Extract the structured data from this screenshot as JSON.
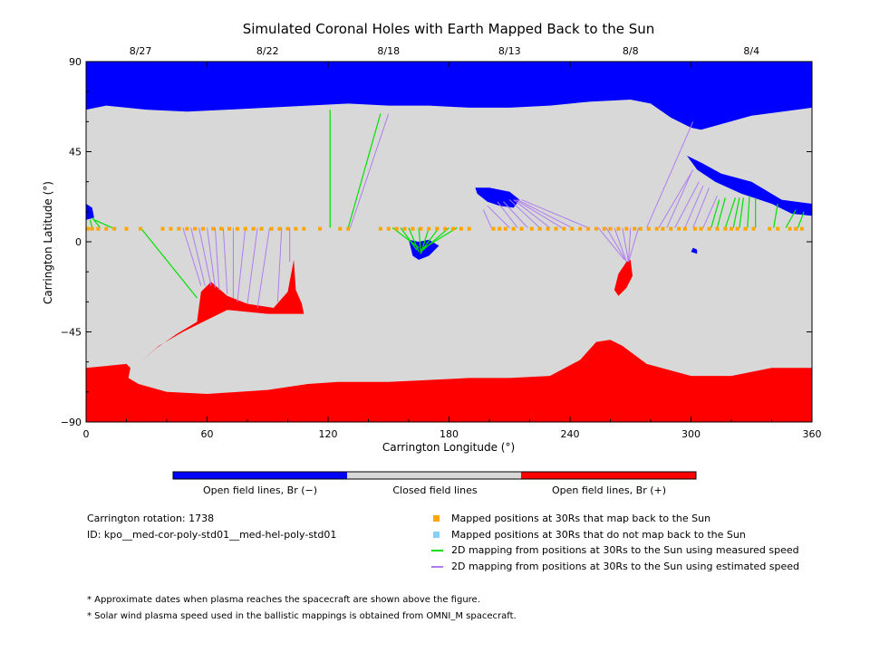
{
  "chart_data": {
    "type": "map",
    "title": "Simulated Coronal Holes with Earth Mapped Back to the Sun",
    "xlabel": "Carrington Longitude (°)",
    "ylabel": "Carrington Latitude (°)",
    "xlim": [
      0,
      360
    ],
    "ylim": [
      -90,
      90
    ],
    "xticks": [
      0,
      60,
      120,
      180,
      240,
      300,
      360
    ],
    "yticks": [
      -90,
      -45,
      0,
      45,
      90
    ],
    "top_axis_dates": [
      {
        "lon": 27,
        "label": "8/27"
      },
      {
        "lon": 90,
        "label": "8/22"
      },
      {
        "lon": 150,
        "label": "8/18"
      },
      {
        "lon": 210,
        "label": "8/13"
      },
      {
        "lon": 270,
        "label": "8/8"
      },
      {
        "lon": 330,
        "label": "8/4"
      }
    ],
    "colors": {
      "open_negative": "#0000ff",
      "closed": "#d8d8d8",
      "open_positive": "#ff0000",
      "mapped_point": "#ffa500",
      "unmapped_point": "#87cefa",
      "measured_line": "#00e000",
      "estimated_line": "#b07cf0"
    },
    "regions": {
      "north_polar_hole": {
        "polarity": "Br (-)",
        "boundary": [
          [
            0,
            66
          ],
          [
            10,
            68
          ],
          [
            20,
            67
          ],
          [
            30,
            66
          ],
          [
            50,
            65
          ],
          [
            70,
            66
          ],
          [
            90,
            67
          ],
          [
            110,
            68
          ],
          [
            130,
            69
          ],
          [
            150,
            68
          ],
          [
            170,
            68
          ],
          [
            190,
            67
          ],
          [
            210,
            67
          ],
          [
            230,
            68
          ],
          [
            250,
            70
          ],
          [
            270,
            71
          ],
          [
            280,
            69
          ],
          [
            290,
            62
          ],
          [
            300,
            57
          ],
          [
            305,
            56
          ],
          [
            330,
            63
          ],
          [
            360,
            67
          ]
        ]
      },
      "south_polar_hole": {
        "polarity": "Br (+)",
        "boundary": [
          [
            0,
            -63
          ],
          [
            10,
            -62
          ],
          [
            20,
            -61
          ],
          [
            22,
            -63
          ],
          [
            21,
            -68
          ],
          [
            26,
            -71
          ],
          [
            40,
            -75
          ],
          [
            60,
            -76
          ],
          [
            90,
            -74
          ],
          [
            110,
            -71
          ],
          [
            125,
            -70
          ],
          [
            150,
            -70
          ],
          [
            170,
            -69
          ],
          [
            190,
            -68
          ],
          [
            210,
            -68
          ],
          [
            230,
            -67
          ],
          [
            245,
            -59
          ],
          [
            253,
            -50
          ],
          [
            260,
            -49
          ],
          [
            266,
            -52
          ],
          [
            278,
            -61
          ],
          [
            300,
            -67
          ],
          [
            320,
            -67
          ],
          [
            340,
            -63
          ],
          [
            360,
            -63
          ]
        ]
      },
      "south_extension": {
        "polarity": "Br (+)",
        "boundary": [
          [
            22,
            -63
          ],
          [
            27,
            -60
          ],
          [
            35,
            -53
          ],
          [
            45,
            -46
          ],
          [
            55,
            -40
          ],
          [
            57,
            -25
          ],
          [
            62,
            -20
          ],
          [
            70,
            -27
          ],
          [
            80,
            -31
          ],
          [
            93,
            -33
          ],
          [
            100,
            -25
          ],
          [
            103,
            -9
          ],
          [
            104,
            -24
          ],
          [
            107,
            -31
          ],
          [
            108,
            -36
          ],
          [
            100,
            -36
          ],
          [
            90,
            -36
          ],
          [
            70,
            -34
          ],
          [
            60,
            -39
          ],
          [
            48,
            -45
          ],
          [
            36,
            -52
          ],
          [
            27,
            -60
          ],
          [
            22,
            -63
          ]
        ]
      },
      "low_lat_hole_positive": {
        "polarity": "Br (+)",
        "boundary": [
          [
            270,
            -9
          ],
          [
            271,
            -17
          ],
          [
            268,
            -23
          ],
          [
            264,
            -27
          ],
          [
            262,
            -24
          ],
          [
            264,
            -16
          ],
          [
            268,
            -10
          ]
        ]
      },
      "low_lat_hole_negative_1": {
        "polarity": "Br (-)",
        "boundary": [
          [
            160,
            1
          ],
          [
            162,
            -7
          ],
          [
            165,
            -9
          ],
          [
            170,
            -7
          ],
          [
            175,
            -2
          ],
          [
            170,
            1
          ],
          [
            165,
            0
          ]
        ]
      },
      "low_lat_hole_negative_2": {
        "polarity": "Br (-)",
        "boundary": [
          [
            193,
            27
          ],
          [
            200,
            27
          ],
          [
            210,
            25
          ],
          [
            215,
            21
          ],
          [
            212,
            17
          ],
          [
            205,
            18
          ],
          [
            199,
            20
          ],
          [
            194,
            24
          ]
        ]
      },
      "north_ext_hole": {
        "polarity": "Br (-)",
        "boundary": [
          [
            298,
            43
          ],
          [
            306,
            39
          ],
          [
            315,
            34
          ],
          [
            330,
            30
          ],
          [
            345,
            21
          ],
          [
            360,
            19
          ],
          [
            360,
            13
          ],
          [
            350,
            14
          ],
          [
            340,
            19
          ],
          [
            325,
            24
          ],
          [
            312,
            30
          ],
          [
            303,
            36
          ]
        ]
      },
      "west_edge_hole": {
        "polarity": "Br (-)",
        "boundary": [
          [
            0,
            19
          ],
          [
            3,
            17
          ],
          [
            4,
            12
          ],
          [
            0,
            11
          ]
        ]
      },
      "small_hole": {
        "polarity": "Br (-)",
        "boundary": [
          [
            301,
            -3
          ],
          [
            303,
            -4
          ],
          [
            303,
            -6
          ],
          [
            300,
            -5
          ]
        ]
      }
    },
    "earth_track": {
      "latitude": 6.5,
      "mapped_lons": [
        1,
        3,
        6,
        10,
        14,
        20,
        27,
        38,
        42,
        46,
        50,
        54,
        58,
        63,
        67,
        71,
        75,
        79,
        83,
        87,
        92,
        96,
        100,
        104,
        108,
        116,
        126,
        130,
        146,
        150,
        154,
        158,
        162,
        166,
        170,
        174,
        178,
        182,
        186,
        190,
        202,
        205,
        208,
        212,
        216,
        221,
        225,
        229,
        233,
        237,
        241,
        245,
        249,
        253,
        257,
        260,
        264,
        268,
        272,
        275,
        279,
        283,
        286,
        290,
        294,
        297,
        302,
        305,
        309,
        313,
        317,
        320,
        323,
        327,
        331,
        339,
        343,
        349,
        352,
        355
      ],
      "unmapped_lons": []
    },
    "mapping_lines_measured": [
      [
        [
          3,
          7
        ],
        [
          2,
          11
        ]
      ],
      [
        [
          7,
          7
        ],
        [
          3,
          12
        ]
      ],
      [
        [
          13,
          7
        ],
        [
          4,
          11
        ]
      ],
      [
        [
          27,
          7
        ],
        [
          55,
          -28
        ]
      ],
      [
        [
          121,
          7
        ],
        [
          121,
          66
        ]
      ],
      [
        [
          130,
          7
        ],
        [
          146,
          64
        ]
      ],
      [
        [
          152,
          7
        ],
        [
          165,
          -3
        ]
      ],
      [
        [
          156,
          7
        ],
        [
          164,
          -4
        ]
      ],
      [
        [
          160,
          7
        ],
        [
          165,
          -5
        ]
      ],
      [
        [
          165,
          7
        ],
        [
          166,
          -6
        ]
      ],
      [
        [
          170,
          7
        ],
        [
          166,
          -6
        ]
      ],
      [
        [
          175,
          7
        ],
        [
          166,
          -5
        ]
      ],
      [
        [
          180,
          7
        ],
        [
          166,
          -5
        ]
      ],
      [
        [
          184,
          7
        ],
        [
          166,
          -4
        ]
      ],
      [
        [
          310,
          7
        ],
        [
          314,
          21
        ]
      ],
      [
        [
          313,
          7
        ],
        [
          317,
          22
        ]
      ],
      [
        [
          317,
          7
        ],
        [
          322,
          22
        ]
      ],
      [
        [
          321,
          7
        ],
        [
          324,
          22
        ]
      ],
      [
        [
          324,
          7
        ],
        [
          326,
          22
        ]
      ],
      [
        [
          328,
          7
        ],
        [
          329,
          23
        ]
      ],
      [
        [
          332,
          7
        ],
        [
          332,
          22
        ]
      ],
      [
        [
          341,
          7
        ],
        [
          343,
          19
        ]
      ],
      [
        [
          347,
          7
        ],
        [
          352,
          16
        ]
      ],
      [
        [
          353,
          7
        ],
        [
          356,
          15
        ]
      ]
    ],
    "mapping_lines_estimated": [
      [
        [
          48,
          7
        ],
        [
          57,
          -22
        ]
      ],
      [
        [
          52,
          7
        ],
        [
          59,
          -22
        ]
      ],
      [
        [
          56,
          7
        ],
        [
          62,
          -22
        ]
      ],
      [
        [
          60,
          7
        ],
        [
          64,
          -23
        ]
      ],
      [
        [
          64,
          7
        ],
        [
          66,
          -24
        ]
      ],
      [
        [
          68,
          7
        ],
        [
          70,
          -26
        ]
      ],
      [
        [
          73,
          7
        ],
        [
          73,
          -28
        ]
      ],
      [
        [
          79,
          7
        ],
        [
          75,
          -30
        ]
      ],
      [
        [
          85,
          7
        ],
        [
          80,
          -31
        ]
      ],
      [
        [
          91,
          7
        ],
        [
          85,
          -33
        ]
      ],
      [
        [
          97,
          7
        ],
        [
          95,
          -30
        ]
      ],
      [
        [
          101,
          7
        ],
        [
          101,
          -10
        ]
      ],
      [
        [
          131,
          7
        ],
        [
          150,
          64
        ]
      ],
      [
        [
          201,
          7
        ],
        [
          197,
          16
        ]
      ],
      [
        [
          210,
          7
        ],
        [
          199,
          18
        ]
      ],
      [
        [
          214,
          7
        ],
        [
          204,
          20
        ]
      ],
      [
        [
          219,
          7
        ],
        [
          207,
          20
        ]
      ],
      [
        [
          225,
          7
        ],
        [
          210,
          21
        ]
      ],
      [
        [
          230,
          7
        ],
        [
          212,
          21
        ]
      ],
      [
        [
          236,
          7
        ],
        [
          213,
          21
        ]
      ],
      [
        [
          241,
          7
        ],
        [
          214,
          21
        ]
      ],
      [
        [
          249,
          7
        ],
        [
          216,
          21
        ]
      ],
      [
        [
          254,
          7
        ],
        [
          267,
          -9
        ]
      ],
      [
        [
          258,
          7
        ],
        [
          268,
          -10
        ]
      ],
      [
        [
          262,
          7
        ],
        [
          268,
          -10
        ]
      ],
      [
        [
          266,
          7
        ],
        [
          269,
          -10
        ]
      ],
      [
        [
          270,
          7
        ],
        [
          269,
          -10
        ]
      ],
      [
        [
          274,
          7
        ],
        [
          269,
          -10
        ]
      ],
      [
        [
          278,
          7
        ],
        [
          301,
          60
        ]
      ],
      [
        [
          284,
          7
        ],
        [
          301,
          36
        ]
      ],
      [
        [
          288,
          7
        ],
        [
          300,
          34
        ]
      ],
      [
        [
          292,
          7
        ],
        [
          304,
          30
        ]
      ],
      [
        [
          297,
          7
        ],
        [
          306,
          28
        ]
      ],
      [
        [
          301,
          7
        ],
        [
          309,
          27
        ]
      ],
      [
        [
          306,
          7
        ],
        [
          313,
          23
        ]
      ]
    ]
  },
  "colorbar": {
    "labels": [
      "Open field lines, Br (−)",
      "Closed field lines",
      "Open field lines, Br (+)"
    ]
  },
  "info": {
    "rotation": "Carrington rotation: 1738",
    "id": "ID: kpo__med-cor-poly-std01__med-hel-poly-std01"
  },
  "legend": [
    {
      "marker": "square",
      "color": "#ffa500",
      "label": "Mapped positions at 30Rs that map back to the Sun"
    },
    {
      "marker": "square",
      "color": "#87cefa",
      "label": "Mapped positions at 30Rs that do not map back to the Sun"
    },
    {
      "marker": "line",
      "color": "#00e000",
      "label": "2D mapping from positions at 30Rs to the Sun using measured speed"
    },
    {
      "marker": "line",
      "color": "#b07cf0",
      "label": "2D mapping from positions at 30Rs to the Sun using estimated speed"
    }
  ],
  "notes": [
    "* Approximate dates when plasma reaches the spacecraft are shown above the figure.",
    "* Solar wind plasma speed used in the ballistic mappings is obtained from OMNI_M spacecraft."
  ]
}
